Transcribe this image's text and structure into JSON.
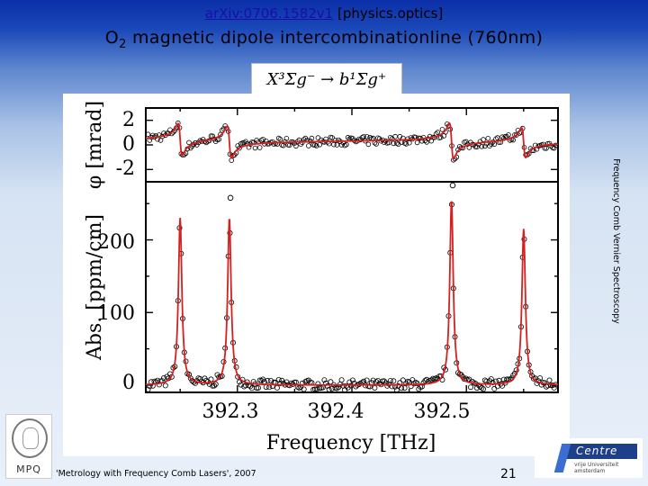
{
  "header": {
    "arxiv_link": "arXiv:0706.1582v1",
    "category": "[physics.optics]"
  },
  "slide": {
    "title_prefix": "O",
    "title_subscript": "2",
    "title_suffix": " magnetic dipole intercombinationline (760nm)",
    "formula": "X³Σg⁻ → b¹Σg⁺",
    "side_label": "Frequency Comb Vernier Spectroscopy",
    "footer_text": "'Metrology with Frequency Comb Lasers', 2007",
    "page_number": "21",
    "logo_left_text": "MPQ",
    "logo_right_text": "Centre",
    "logo_right_sub": "vrije Universiteit  amsterdam"
  },
  "chart_data": [
    {
      "type": "line",
      "panel": "phase",
      "ylabel": "φ [mrad]",
      "yticks": [
        "2",
        "0",
        "-2"
      ],
      "ylim": [
        -3,
        3
      ],
      "xlim": [
        392.22,
        392.58
      ],
      "peaks_THz": [
        392.25,
        392.293,
        392.487,
        392.55
      ],
      "series": [
        {
          "values": "dispersive fit (red line)"
        },
        {
          "values": "measurement (open circles)"
        }
      ]
    },
    {
      "type": "line",
      "panel": "absorption",
      "ylabel": "Abs. [ppm/cm]",
      "xlabel": "Frequency [THz]",
      "yticks": [
        "200",
        "100",
        "0"
      ],
      "xticks": [
        "392.3",
        "392.4",
        "392.5"
      ],
      "ylim": [
        -10,
        280
      ],
      "xlim": [
        392.22,
        392.58
      ],
      "peaks": [
        {
          "x": 392.25,
          "y": 230
        },
        {
          "x": 392.293,
          "y": 230
        },
        {
          "x": 392.487,
          "y": 255
        },
        {
          "x": 392.55,
          "y": 215
        }
      ],
      "outlier_points": [
        {
          "x": 392.294,
          "y": 258
        },
        {
          "x": 392.488,
          "y": 285
        }
      ]
    }
  ]
}
